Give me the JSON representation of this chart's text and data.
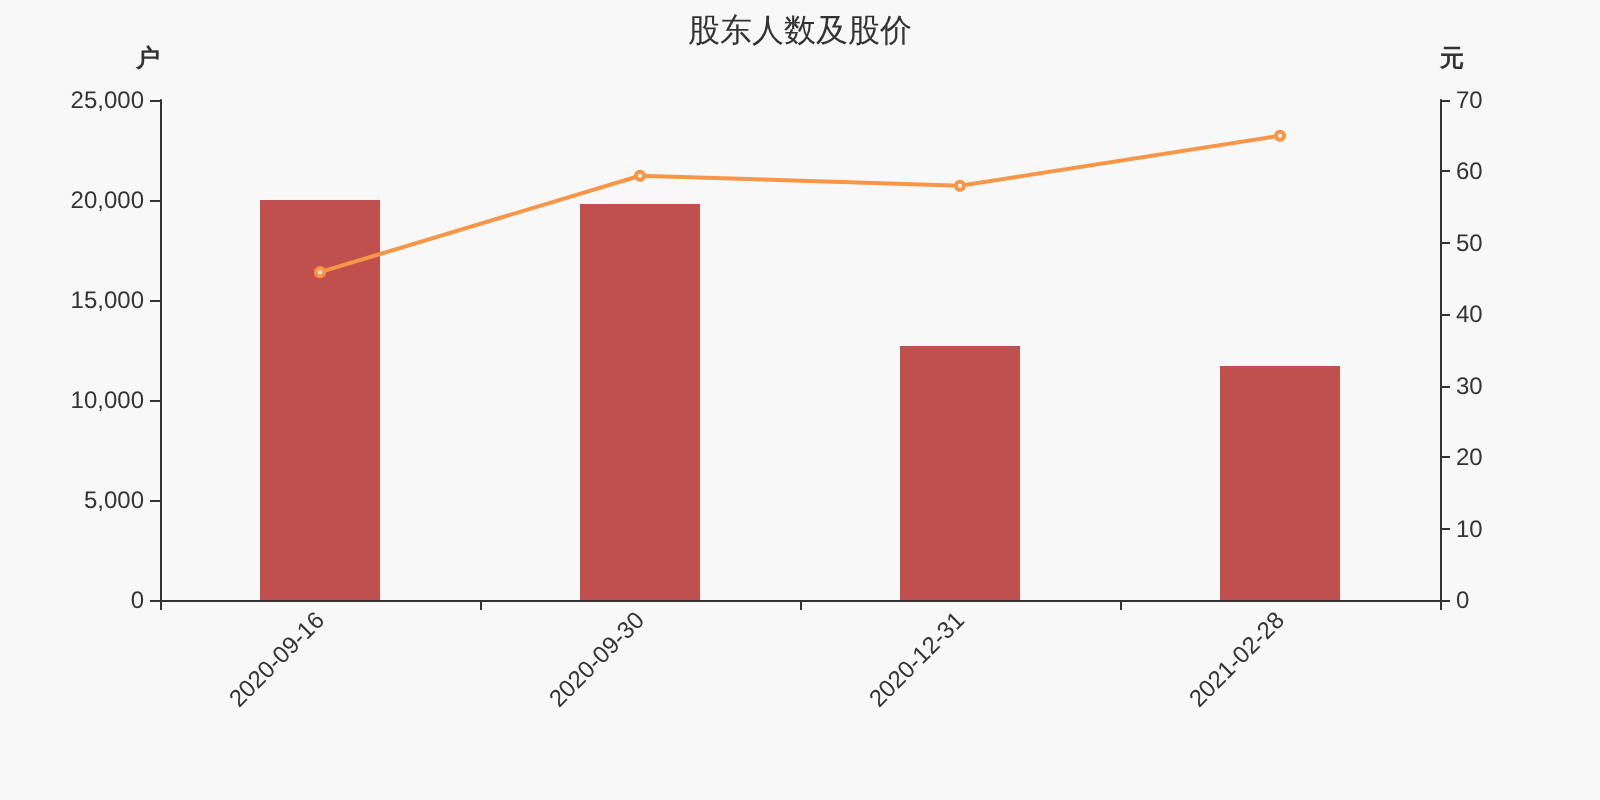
{
  "chart_data": {
    "type": "bar",
    "title": "股东人数及股价",
    "ylabel": "户",
    "y2label": "元",
    "categories": [
      "2020-09-16",
      "2020-09-30",
      "2020-12-31",
      "2021-02-28"
    ],
    "series": [
      {
        "color": "#c0504d",
        "values": [
          20000,
          19800,
          12700,
          11700
        ]
      },
      {
        "type": "line",
        "axis": "y2",
        "color": "#f79646",
        "marker": "circle",
        "values": [
          45.9,
          59.4,
          58.0,
          65.0
        ]
      }
    ],
    "ylim": [
      0,
      25000
    ],
    "yticks": [
      0,
      {
        "value": 5000,
        "label": "5,000"
      },
      {
        "value": 10000,
        "label": "10,000"
      },
      {
        "value": 15000,
        "label": "15,000"
      },
      {
        "value": 20000,
        "label": "20,000"
      },
      {
        "value": 25000,
        "label": "25,000"
      }
    ],
    "y2lim": [
      0,
      70
    ],
    "y2ticks": [
      0,
      10,
      20,
      30,
      40,
      50,
      60,
      70
    ],
    "grid": false
  }
}
